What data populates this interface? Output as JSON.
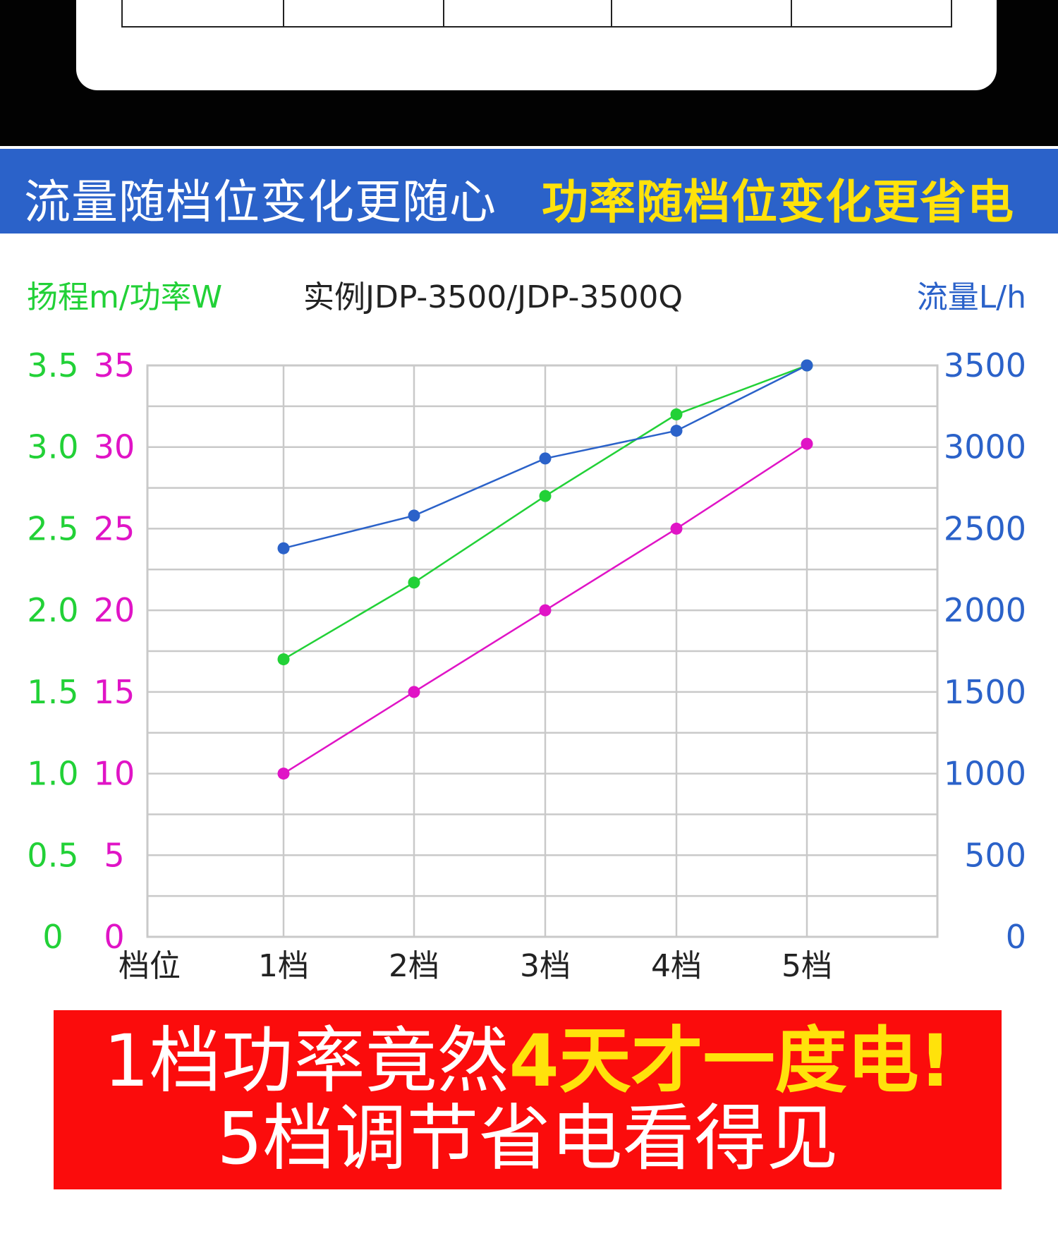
{
  "banner": {
    "left_text": "流量随档位变化更随心",
    "right_text": "功率随档位变化更省电"
  },
  "footer": {
    "line1_part1": "1档功率竟然",
    "line1_part2": "4天才一度电!",
    "line2": "5档调节省电看得见"
  },
  "colors": {
    "head_green": "#22d137",
    "power_magenta": "#e014c6",
    "flow_blue": "#2b62c9",
    "banner_blue": "#2b62c9",
    "highlight_yellow": "#ffe20b",
    "footer_red": "#fb0c0c"
  },
  "chart_data": {
    "type": "line",
    "title": "实例JDP-3500/JDP-3500Q",
    "left_axis_label": "扬程m/功率W",
    "right_axis_label": "流量L/h",
    "xlabel": "档位",
    "categories": [
      "1档",
      "2档",
      "3档",
      "4档",
      "5档"
    ],
    "head_ticks": [
      "0",
      "0.5",
      "1.0",
      "1.5",
      "2.0",
      "2.5",
      "3.0",
      "3.5"
    ],
    "power_ticks": [
      "0",
      "5",
      "10",
      "15",
      "20",
      "25",
      "30",
      "35"
    ],
    "flow_ticks": [
      "0",
      "500",
      "1000",
      "1500",
      "2000",
      "2500",
      "3000",
      "3500"
    ],
    "ylim_head": [
      0,
      3.5
    ],
    "ylim_power": [
      0,
      35
    ],
    "ylim_flow": [
      0,
      3500
    ],
    "grid": true,
    "series": [
      {
        "axis": "head",
        "color": "#22d137",
        "values": [
          1.7,
          2.17,
          2.7,
          3.2,
          3.5
        ]
      },
      {
        "axis": "power",
        "color": "#e014c6",
        "values": [
          10,
          15,
          20,
          25,
          30.2
        ]
      },
      {
        "axis": "flow",
        "color": "#2b62c9",
        "values": [
          2380,
          2580,
          2930,
          3100,
          3500
        ]
      }
    ]
  }
}
